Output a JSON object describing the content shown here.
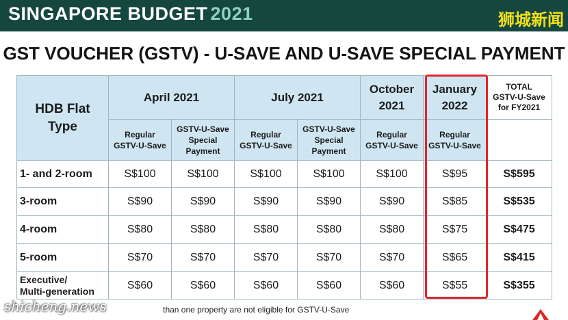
{
  "banner": {
    "title": "SINGAPORE BUDGET",
    "year": "2021",
    "cn_logo": "狮城新闻"
  },
  "headline": "GST VOUCHER (GSTV) - U-SAVE AND U-SAVE SPECIAL PAYMENT",
  "table": {
    "flat_type_header": [
      "HDB Flat",
      "Type"
    ],
    "periods": {
      "april": "April 2021",
      "july": "July 2021",
      "october": [
        "October",
        "2021"
      ],
      "january": [
        "January",
        "2022"
      ]
    },
    "total_header": [
      "TOTAL",
      "GSTV-U-Save",
      "for FY2021"
    ],
    "sub": {
      "regular": [
        "Regular",
        "GSTV-U-Save"
      ],
      "special": [
        "GSTV-U-Save",
        "Special",
        "Payment"
      ]
    },
    "rows": [
      {
        "type": "1- and 2-room",
        "values": [
          "S$100",
          "S$100",
          "S$100",
          "S$100",
          "S$100",
          "S$95"
        ],
        "total": "S$595"
      },
      {
        "type": "3-room",
        "values": [
          "S$90",
          "S$90",
          "S$90",
          "S$90",
          "S$90",
          "S$85"
        ],
        "total": "S$535"
      },
      {
        "type": "4-room",
        "values": [
          "S$80",
          "S$80",
          "S$80",
          "S$80",
          "S$80",
          "S$75"
        ],
        "total": "S$475"
      },
      {
        "type": "5-room",
        "values": [
          "S$70",
          "S$70",
          "S$70",
          "S$70",
          "S$70",
          "S$65"
        ],
        "total": "S$415"
      },
      {
        "type": [
          "Executive/",
          "Multi-generation"
        ],
        "values": [
          "S$60",
          "S$60",
          "S$60",
          "S$60",
          "S$60",
          "S$55"
        ],
        "total": "S$355"
      }
    ]
  },
  "footnote": "than one property are not eligible for GSTV-U-Save",
  "watermark": "shicheng.news",
  "colors": {
    "banner": "#15473f",
    "banner_year": "#8fd0c3",
    "cn_logo": "#f4e01a",
    "header_fill": "#cfe5f2",
    "highlight": "#e0272a",
    "logo_red": "#e0272a"
  },
  "icons": {
    "corner_logo": "channel-logo-icon"
  }
}
